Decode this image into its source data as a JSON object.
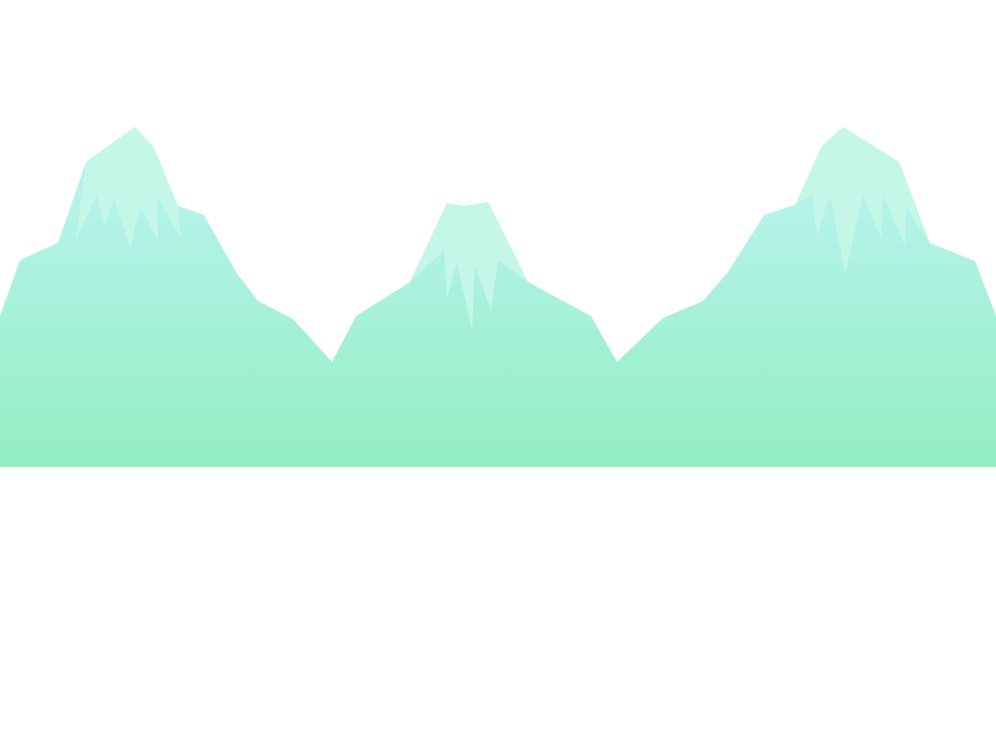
{
  "scene": {
    "subject": "mountain-range",
    "background_color": "#ffffff",
    "mountain_gradient": {
      "top": "#b5f3ea",
      "bottom": "#93eec3"
    },
    "snowcap_color": "#c4f7e8",
    "peaks": [
      {
        "id": "left",
        "has_snowcap": true
      },
      {
        "id": "center",
        "has_snowcap": true
      },
      {
        "id": "right",
        "has_snowcap": true
      }
    ]
  }
}
